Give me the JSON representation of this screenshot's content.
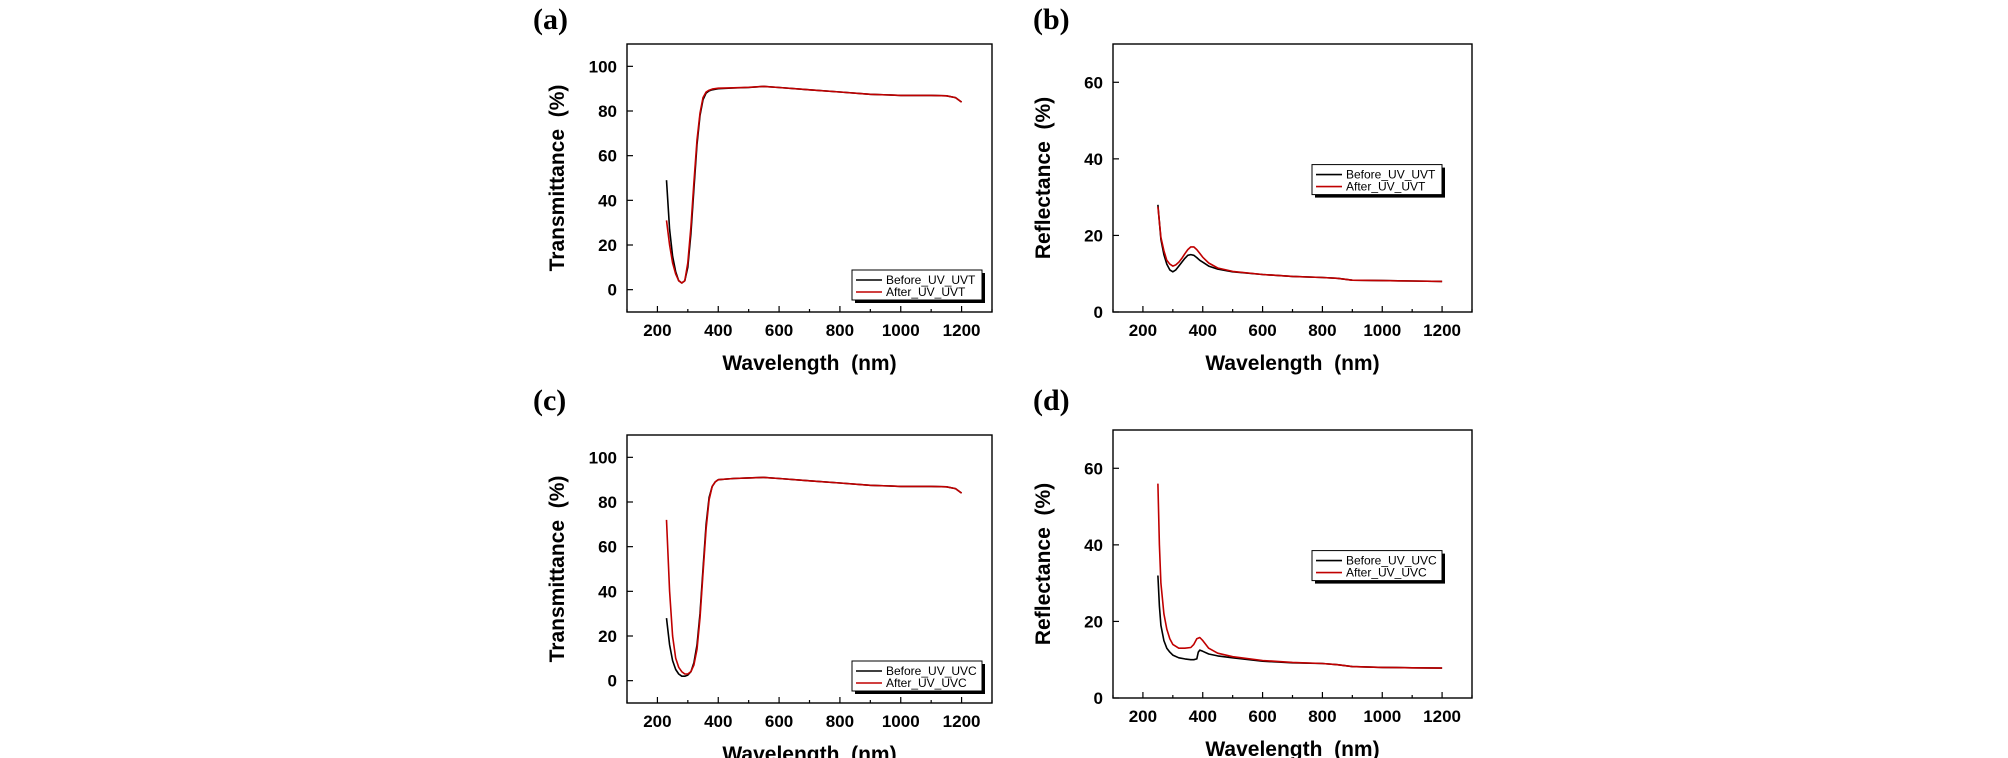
{
  "chart_data": [
    {
      "type": "line",
      "panel": "(a)",
      "xlabel": "Wavelength  (nm)",
      "ylabel": "Transmittance  (%)",
      "xlim": [
        100,
        1300
      ],
      "ylim": [
        -10,
        110
      ],
      "xticks": [
        200,
        400,
        600,
        800,
        1000,
        1200
      ],
      "yticks": [
        0,
        20,
        40,
        60,
        80,
        100
      ],
      "legend_position": "bottom-right",
      "series": [
        {
          "name": "Before_UV_UVT",
          "color": "#000000",
          "x": [
            230,
            240,
            250,
            260,
            270,
            280,
            290,
            300,
            310,
            320,
            330,
            340,
            350,
            360,
            370,
            380,
            400,
            450,
            500,
            550,
            600,
            700,
            800,
            900,
            1000,
            1100,
            1150,
            1180,
            1200
          ],
          "y": [
            49,
            27,
            15,
            8,
            4,
            3,
            4,
            10,
            25,
            45,
            65,
            78,
            85,
            88,
            89,
            89.5,
            90,
            90.3,
            90.5,
            91,
            90.5,
            89.5,
            88.5,
            87.5,
            87,
            87,
            86.8,
            86,
            84
          ]
        },
        {
          "name": "After_UV_UVT",
          "color": "#c00000",
          "x": [
            230,
            240,
            250,
            260,
            270,
            280,
            290,
            300,
            310,
            320,
            330,
            340,
            350,
            360,
            370,
            380,
            400,
            450,
            500,
            550,
            600,
            700,
            800,
            900,
            1000,
            1100,
            1150,
            1180,
            1200
          ],
          "y": [
            31,
            20,
            12,
            7,
            4,
            3,
            4,
            12,
            28,
            48,
            67,
            79,
            86,
            88.5,
            89.3,
            89.8,
            90.2,
            90.4,
            90.6,
            91,
            90.5,
            89.5,
            88.5,
            87.5,
            87,
            87,
            86.8,
            86,
            84
          ]
        }
      ]
    },
    {
      "type": "line",
      "panel": "(b)",
      "xlabel": "Wavelength  (nm)",
      "ylabel": "Reflectance  (%)",
      "xlim": [
        100,
        1300
      ],
      "ylim": [
        0,
        70
      ],
      "xticks": [
        200,
        400,
        600,
        800,
        1000,
        1200
      ],
      "yticks": [
        0,
        20,
        40,
        60
      ],
      "legend_position": "center-right",
      "series": [
        {
          "name": "Before_UV_UVT",
          "color": "#000000",
          "x": [
            250,
            260,
            270,
            280,
            290,
            300,
            310,
            320,
            330,
            340,
            350,
            360,
            370,
            380,
            390,
            400,
            420,
            450,
            500,
            600,
            700,
            800,
            850,
            900,
            1000,
            1100,
            1200
          ],
          "y": [
            28,
            19,
            15,
            12.5,
            11,
            10.5,
            11,
            12,
            13,
            14,
            14.8,
            15,
            14.8,
            14.2,
            13.5,
            13,
            12,
            11.2,
            10.5,
            9.8,
            9.3,
            9,
            8.8,
            8.3,
            8.2,
            8.1,
            8
          ]
        },
        {
          "name": "After_UV_UVT",
          "color": "#c00000",
          "x": [
            250,
            260,
            270,
            280,
            290,
            300,
            310,
            320,
            330,
            340,
            350,
            360,
            370,
            380,
            390,
            400,
            420,
            450,
            500,
            600,
            700,
            800,
            850,
            900,
            1000,
            1100,
            1200
          ],
          "y": [
            27.5,
            19.5,
            16,
            13.5,
            12.5,
            12,
            12.3,
            13,
            14,
            15.2,
            16.3,
            17,
            17,
            16.3,
            15.3,
            14.3,
            12.8,
            11.5,
            10.6,
            9.8,
            9.3,
            9,
            8.8,
            8.3,
            8.2,
            8.1,
            8
          ]
        }
      ]
    },
    {
      "type": "line",
      "panel": "(c)",
      "xlabel": "Wavelength  (nm)",
      "ylabel": "Transmittance  (%)",
      "xlim": [
        100,
        1300
      ],
      "ylim": [
        -10,
        110
      ],
      "xticks": [
        200,
        400,
        600,
        800,
        1000,
        1200
      ],
      "yticks": [
        0,
        20,
        40,
        60,
        80,
        100
      ],
      "legend_position": "bottom-right",
      "series": [
        {
          "name": "Before_UV_UVC",
          "color": "#000000",
          "x": [
            230,
            240,
            250,
            260,
            270,
            280,
            290,
            300,
            310,
            320,
            330,
            340,
            350,
            360,
            370,
            380,
            390,
            400,
            450,
            500,
            550,
            600,
            700,
            800,
            900,
            1000,
            1100,
            1150,
            1180,
            1200
          ],
          "y": [
            28,
            16,
            9,
            5,
            3,
            2,
            2,
            2.5,
            4,
            8,
            16,
            30,
            50,
            70,
            82,
            87,
            89,
            90,
            90.5,
            90.8,
            91,
            90.5,
            89.5,
            88.5,
            87.5,
            87,
            87,
            86.8,
            86,
            84
          ]
        },
        {
          "name": "After_UV_UVC",
          "color": "#c00000",
          "x": [
            230,
            240,
            250,
            260,
            270,
            280,
            290,
            300,
            310,
            320,
            330,
            340,
            350,
            360,
            370,
            380,
            390,
            400,
            450,
            500,
            550,
            600,
            700,
            800,
            900,
            1000,
            1100,
            1150,
            1180,
            1200
          ],
          "y": [
            72,
            40,
            20,
            10,
            6,
            4,
            3,
            3,
            4,
            7,
            14,
            28,
            48,
            68,
            81,
            87,
            89,
            90,
            90.5,
            90.8,
            91,
            90.5,
            89.5,
            88.5,
            87.5,
            87,
            87,
            86.8,
            86,
            84
          ]
        }
      ]
    },
    {
      "type": "line",
      "panel": "(d)",
      "xlabel": "Wavelength  (nm)",
      "ylabel": "Reflectance  (%)",
      "xlim": [
        100,
        1300
      ],
      "ylim": [
        0,
        70
      ],
      "xticks": [
        200,
        400,
        600,
        800,
        1000,
        1200
      ],
      "yticks": [
        0,
        20,
        40,
        60
      ],
      "legend_position": "center-right",
      "series": [
        {
          "name": "Before_UV_UVC",
          "color": "#000000",
          "x": [
            250,
            255,
            260,
            270,
            280,
            290,
            300,
            320,
            340,
            360,
            370,
            380,
            385,
            390,
            400,
            420,
            450,
            500,
            600,
            700,
            800,
            850,
            900,
            1000,
            1100,
            1200
          ],
          "y": [
            32,
            24,
            19,
            15,
            13,
            12,
            11.2,
            10.5,
            10.2,
            10,
            10,
            10.2,
            12,
            12.5,
            12.2,
            11.5,
            11,
            10.5,
            9.6,
            9.2,
            9,
            8.7,
            8.2,
            8,
            7.9,
            7.8
          ]
        },
        {
          "name": "After_UV_UVC",
          "color": "#c00000",
          "x": [
            250,
            255,
            260,
            270,
            280,
            290,
            300,
            320,
            340,
            360,
            370,
            380,
            390,
            400,
            420,
            450,
            500,
            600,
            700,
            800,
            850,
            900,
            1000,
            1100,
            1200
          ],
          "y": [
            56,
            40,
            30,
            22,
            18,
            15.5,
            14,
            13,
            13,
            13.2,
            14,
            15.5,
            15.8,
            15,
            13,
            11.7,
            10.8,
            9.8,
            9.3,
            9,
            8.7,
            8.2,
            8,
            7.9,
            7.8
          ]
        }
      ]
    }
  ]
}
